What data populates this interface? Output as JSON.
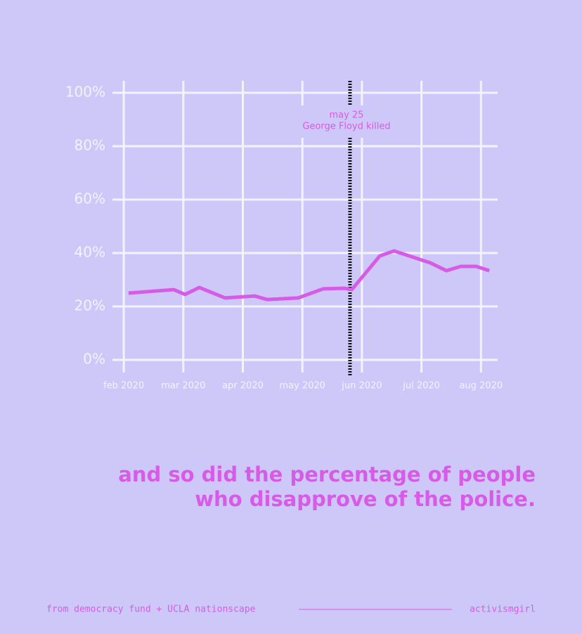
{
  "chart_data": {
    "type": "line",
    "x": [
      0.08,
      0.84,
      1.03,
      1.27,
      1.7,
      2.2,
      2.41,
      2.93,
      3.35,
      3.71,
      3.83,
      4.3,
      4.54,
      5.15,
      5.42,
      5.66,
      5.92,
      6.14
    ],
    "series": [
      {
        "name": "disapprove of the police",
        "color": "#d75be6",
        "values": [
          25.0,
          26.3,
          24.5,
          27.1,
          23.2,
          23.9,
          22.6,
          23.2,
          26.6,
          26.8,
          26.3,
          38.9,
          40.8,
          36.3,
          33.4,
          35.0,
          35.0,
          33.4
        ]
      }
    ],
    "xlim": [
      -0.19,
      6.28
    ],
    "xticks": [
      {
        "value": 0,
        "label": "feb 2020"
      },
      {
        "value": 1,
        "label": "mar 2020"
      },
      {
        "value": 2,
        "label": "apr 2020"
      },
      {
        "value": 3,
        "label": "may 2020"
      },
      {
        "value": 4,
        "label": "jun 2020"
      },
      {
        "value": 5,
        "label": "jul 2020"
      },
      {
        "value": 6,
        "label": "aug 2020"
      }
    ],
    "ylim": [
      0,
      100
    ],
    "yticks": [
      {
        "value": 0,
        "label": "0%"
      },
      {
        "value": 20,
        "label": "20%"
      },
      {
        "value": 40,
        "label": "40%"
      },
      {
        "value": 60,
        "label": "60%"
      },
      {
        "value": 80,
        "label": "80%"
      },
      {
        "value": 100,
        "label": "100%"
      }
    ],
    "grid": true,
    "annotation": {
      "x": 3.8,
      "text": [
        "may 25",
        "George Floyd killed"
      ]
    },
    "caption": [
      "and so did the percentage of people",
      "who disapprove of the police."
    ],
    "source": "from democracy fund + UCLA nationscape",
    "credit": "activismgirl"
  }
}
